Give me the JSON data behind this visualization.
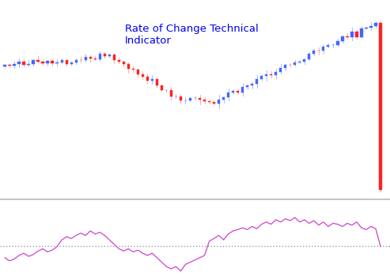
{
  "title": "Rate of Change Technical\nIndicator",
  "title_color": "#0000EE",
  "title_fontsize": 9.5,
  "background_color": "#FFFFFF",
  "separator_color": "#BBBBBB",
  "roc_line_color": "#CC44CC",
  "roc_zero_line_color": "#888888",
  "candle_seed": 42,
  "roc_values": [
    -3.5,
    -4.2,
    -3.8,
    -3.0,
    -2.5,
    -3.2,
    -2.8,
    -2.0,
    -1.5,
    -2.2,
    -1.8,
    -1.0,
    0.5,
    1.2,
    0.8,
    1.5,
    2.0,
    1.5,
    2.5,
    1.8,
    2.2,
    1.5,
    0.5,
    -0.5,
    -1.5,
    -2.0,
    -1.5,
    -2.2,
    -1.8,
    -2.5,
    -3.0,
    -2.5,
    -3.5,
    -4.5,
    -5.5,
    -6.0,
    -5.5,
    -6.5,
    -5.0,
    -4.5,
    -4.0,
    -3.5,
    -3.0,
    0.2,
    0.8,
    1.5,
    0.5,
    1.8,
    2.5,
    2.8,
    3.2,
    2.8,
    3.5,
    3.0,
    4.0,
    4.5,
    4.0,
    5.0,
    4.5,
    5.2,
    4.8,
    5.5,
    4.5,
    5.0,
    4.2,
    4.8,
    3.8,
    4.5,
    3.5,
    4.2,
    4.0,
    3.5,
    4.2,
    3.8,
    4.5,
    3.2,
    2.8,
    3.5,
    3.0,
    -1.0
  ]
}
